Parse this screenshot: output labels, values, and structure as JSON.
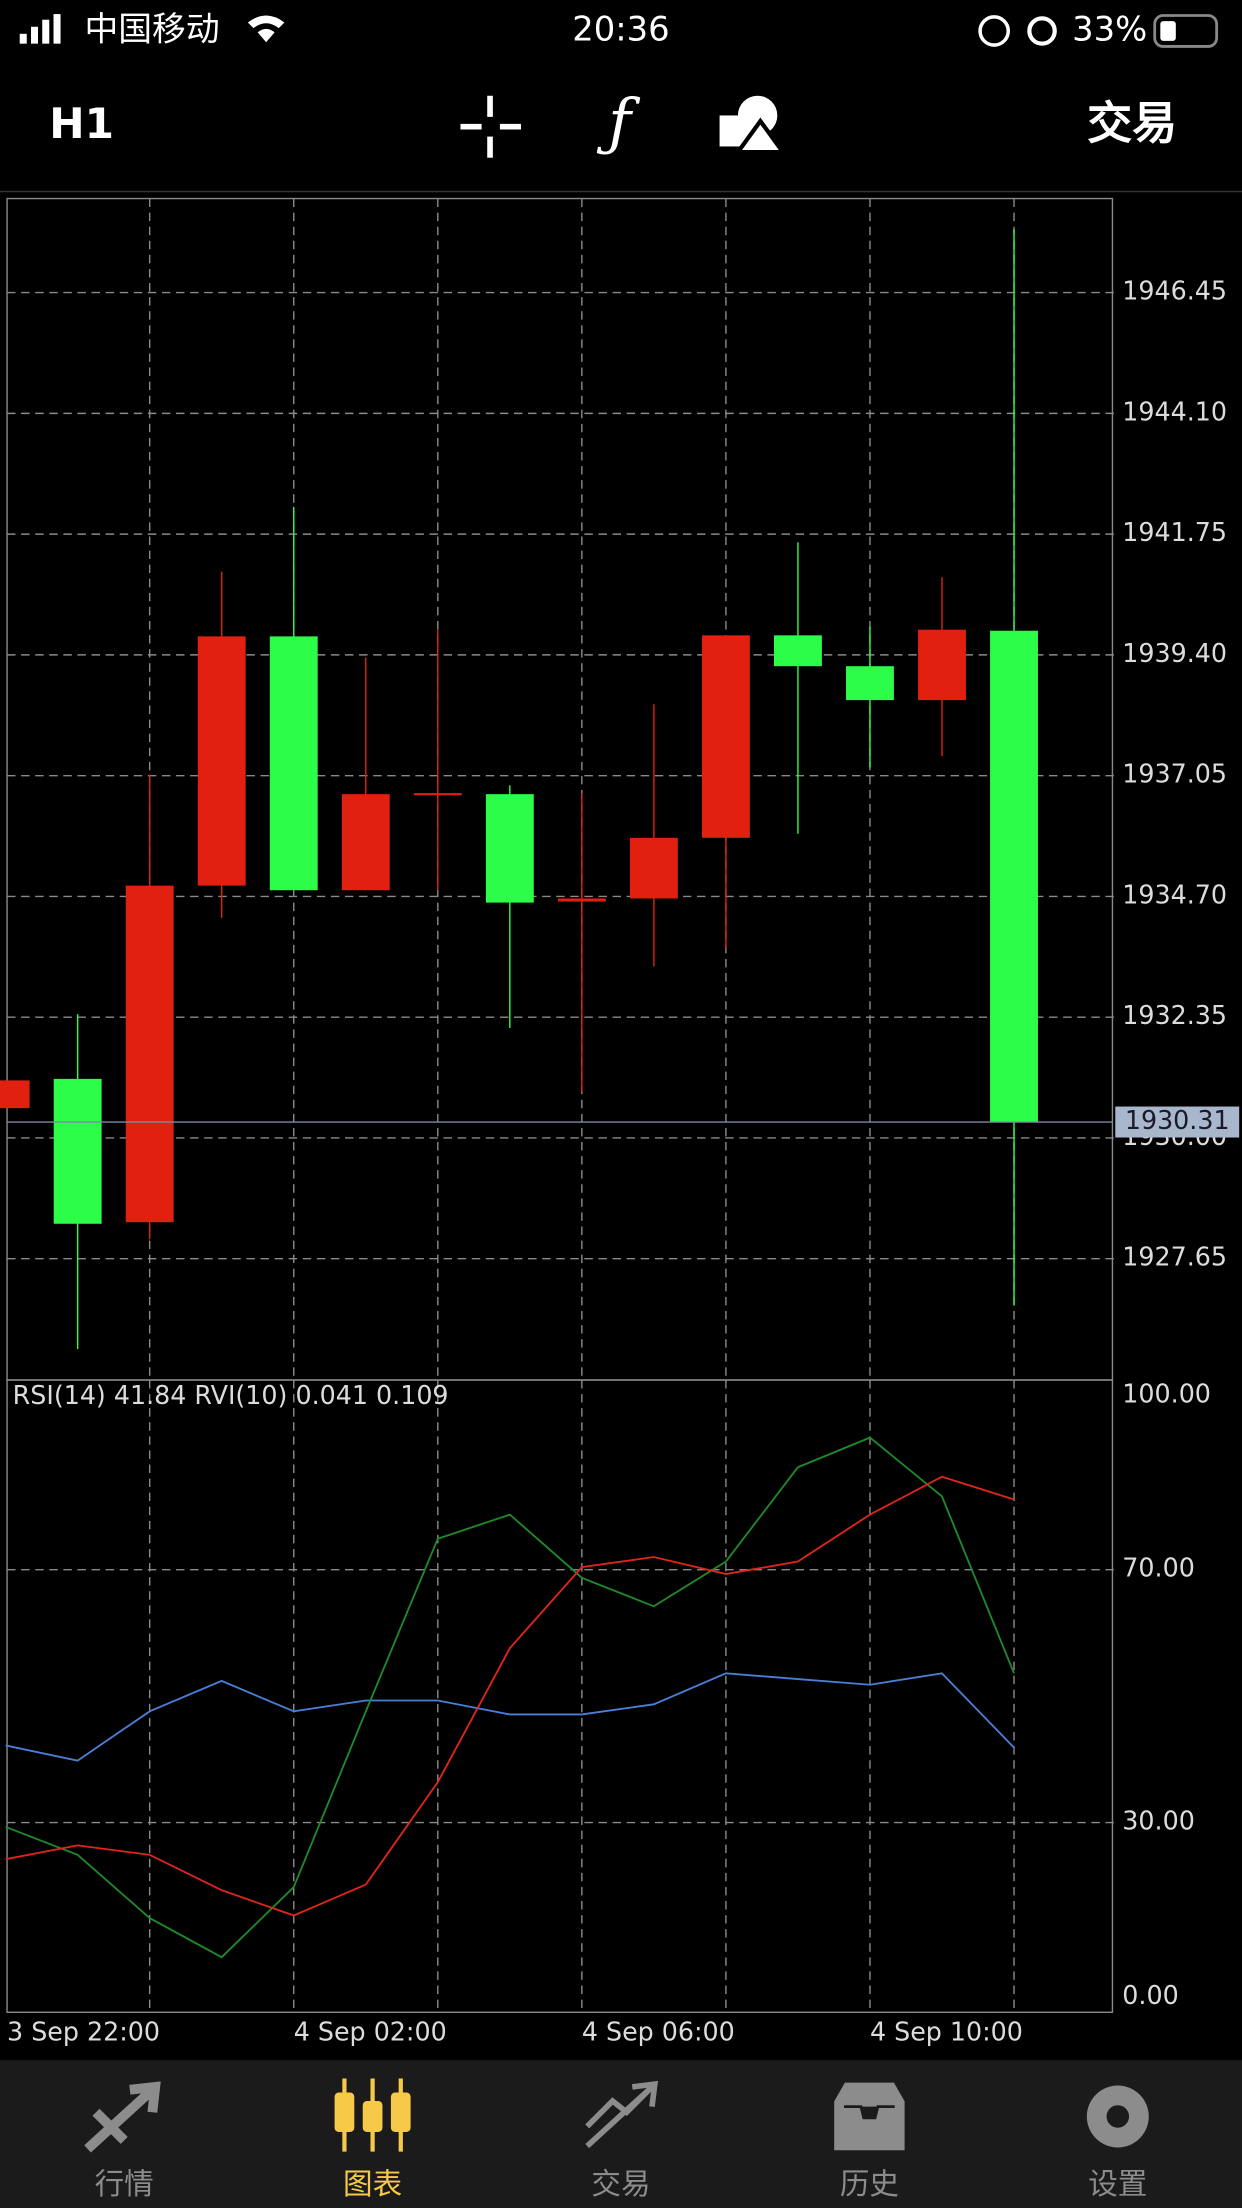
{
  "status_bar": {
    "carrier": "中国移动",
    "time": "20:36",
    "battery": "33%"
  },
  "toolbar": {
    "timeframe": "H1",
    "trade": "交易"
  },
  "chart_data": [
    {
      "type": "candlestick",
      "open": [
        1931.12,
        1928.33,
        1934.91,
        1939.76,
        1934.82,
        1936.69,
        1936.71,
        1934.58,
        1934.66,
        1935.84,
        1939.78,
        1939.18,
        1938.52,
        1939.89,
        1930.31
      ],
      "high": [
        1931.12,
        1932.41,
        1937.07,
        1941.02,
        1942.28,
        1939.35,
        1939.89,
        1936.86,
        1936.71,
        1938.44,
        1939.78,
        1941.59,
        1939.95,
        1940.91,
        1947.68
      ],
      "low": [
        1930.58,
        1925.89,
        1928.03,
        1934.28,
        1934.82,
        1934.82,
        1934.82,
        1932.14,
        1930.9,
        1933.34,
        1933.7,
        1935.92,
        1937.21,
        1937.43,
        1926.74
      ],
      "close": [
        1930.58,
        1931.15,
        1928.36,
        1934.91,
        1939.76,
        1934.82,
        1936.69,
        1936.69,
        1934.6,
        1934.66,
        1935.84,
        1939.78,
        1939.18,
        1938.52,
        1939.87
      ],
      "up_color": "#2bfd48",
      "down_color": "#e1200f",
      "ylim": [
        1925.29,
        1948.28
      ],
      "yticks": [
        1946.45,
        {
          "value": 1944.1,
          "label": "1944.10"
        },
        1941.75,
        {
          "value": 1939.4,
          "label": "1939.40"
        },
        1937.05,
        {
          "value": 1934.7,
          "label": "1934.70"
        },
        1932.35,
        {
          "value": 1930,
          "label": "1930.00"
        },
        1927.65
      ],
      "current_price": 1930.31,
      "grid": true
    },
    {
      "type": "line",
      "title": "RSI(14) 41.84 RVI(10) 0.041 0.109",
      "categories": [
        "3 Sep 22:00",
        null,
        null,
        null,
        "4 Sep 02:00",
        null,
        null,
        null,
        "4 Sep 06:00",
        null,
        null,
        null,
        "4 Sep 10:00",
        null,
        null
      ],
      "series": [
        {
          "color": "#4a7fd6",
          "values": [
            42.2,
            39.8,
            47.6,
            52.4,
            47.6,
            49.3,
            49.3,
            47.1,
            47.1,
            48.7,
            53.6,
            52.7,
            51.8,
            53.6,
            41.84
          ]
        },
        {
          "color": "#1f8a2a",
          "values": [
            29.3,
            24.9,
            14.9,
            8.7,
            19.8,
            47.6,
            74.9,
            78.7,
            68.7,
            64.2,
            71.3,
            86.2,
            90.9,
            81.6,
            53.6
          ]
        },
        {
          "color": "#e0261a",
          "values": [
            24.2,
            26.4,
            24.9,
            19.3,
            15.3,
            20.2,
            36.4,
            57.6,
            70.4,
            72.0,
            69.3,
            71.3,
            78.7,
            84.7,
            81.1
          ]
        }
      ],
      "ylim": [
        0,
        100
      ],
      "yticks": [
        {
          "value": 100,
          "label": "100.00"
        },
        {
          "value": 70,
          "label": "70.00"
        },
        {
          "value": 30,
          "label": "30.00"
        },
        {
          "value": 0,
          "label": "0.00"
        }
      ],
      "grid": true
    }
  ],
  "tab_bar": {
    "tabs": [
      {
        "label": "行情"
      },
      {
        "label": "图表"
      },
      {
        "label": "交易"
      },
      {
        "label": "历史"
      },
      {
        "label": "设置"
      }
    ],
    "active": 1
  }
}
